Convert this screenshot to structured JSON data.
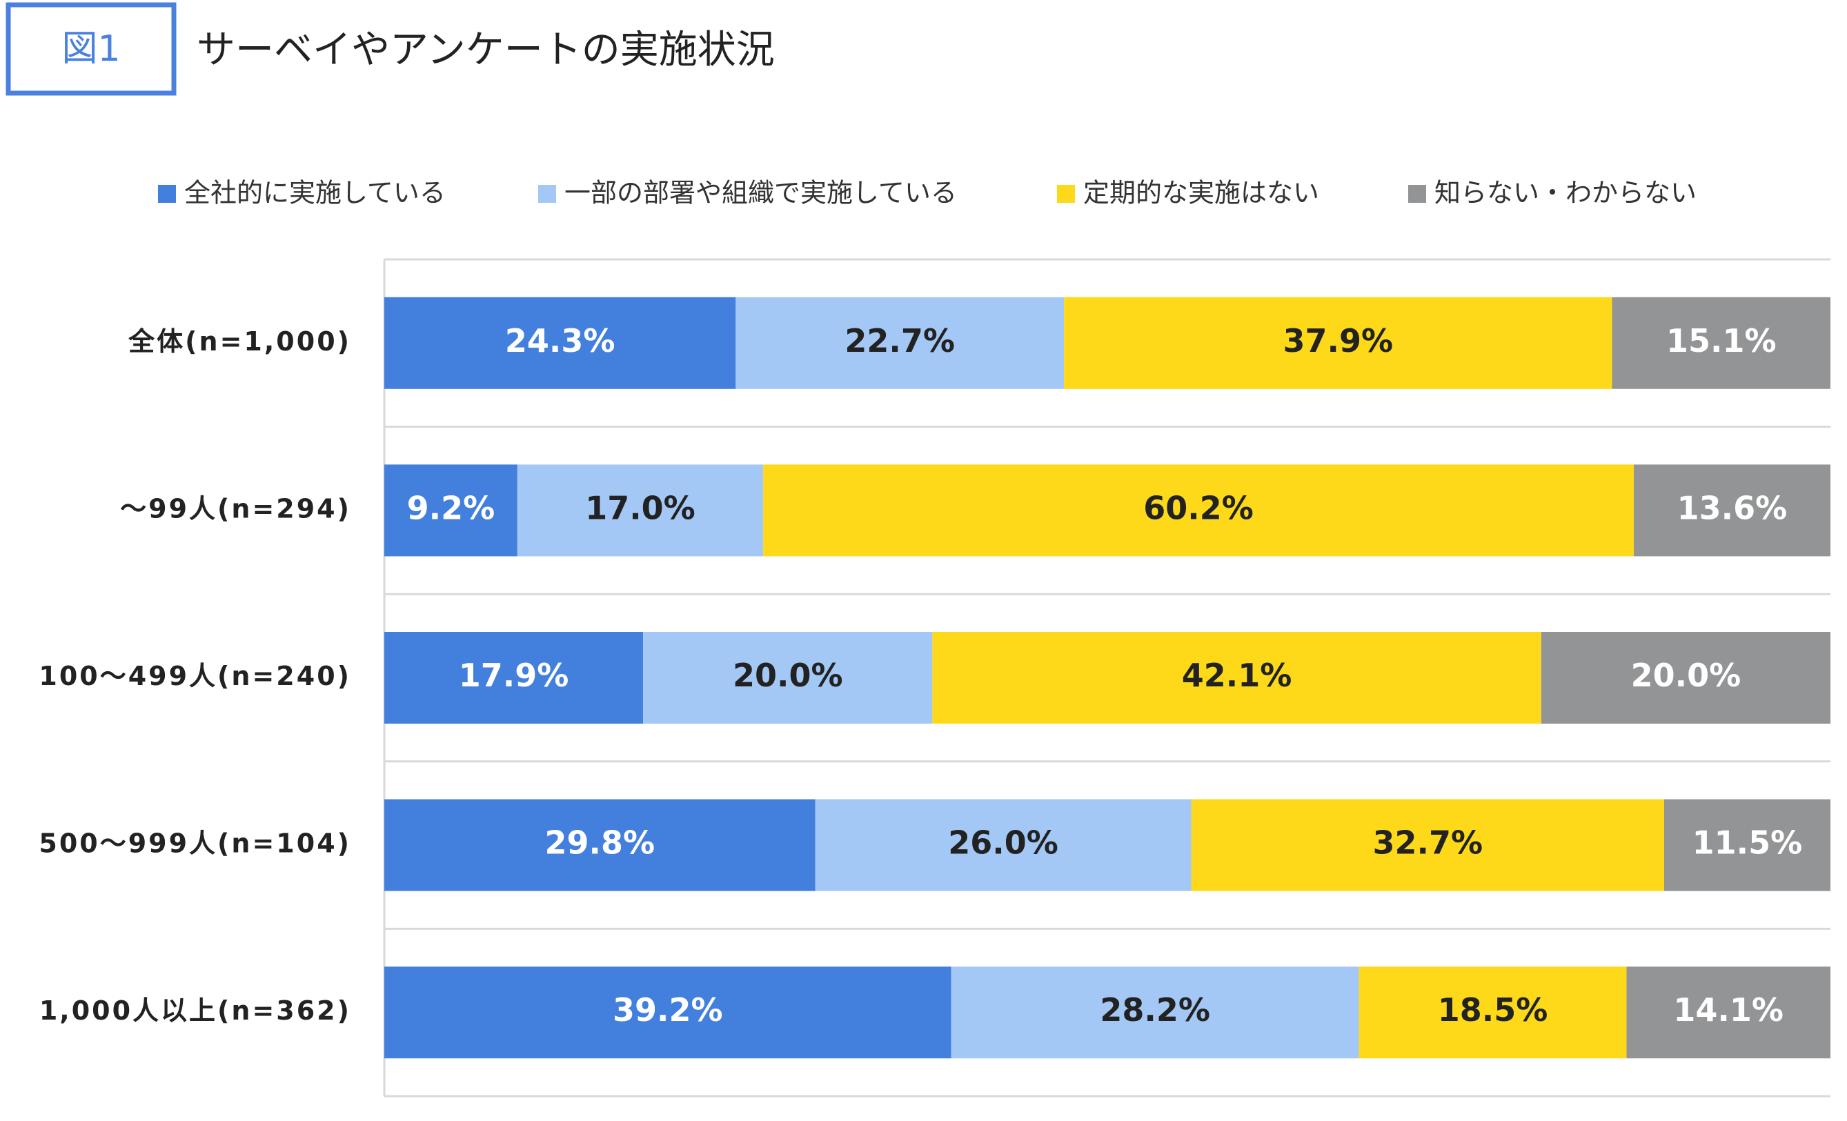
{
  "figure_label": "図1",
  "chart_data": {
    "type": "stacked-bar-horizontal",
    "title": "サーベイやアンケートの実施状況",
    "categories": [
      "全体(n=1,000)",
      "～99人(n=294)",
      "100～499人(n=240)",
      "500～999人(n=104)",
      "1,000人以上(n=362)"
    ],
    "xlim": [
      0,
      100
    ],
    "series": [
      {
        "name": "全社的に実施している",
        "color": "#437fdd",
        "label_color": "#ffffff",
        "values": [
          24.3,
          9.2,
          17.9,
          29.8,
          39.2
        ],
        "value_labels": [
          "24.3%",
          "9.2%",
          "17.9%",
          "29.8%",
          "39.2%"
        ]
      },
      {
        "name": "一部の部署や組織で実施している",
        "color": "#a4c8f5",
        "label_color": "#222222",
        "values": [
          22.7,
          17.0,
          20.0,
          26.0,
          28.2
        ],
        "value_labels": [
          "22.7%",
          "17.0%",
          "20.0%",
          "26.0%",
          "28.2%"
        ]
      },
      {
        "name": "定期的な実施はない",
        "color": "#fdd91a",
        "label_color": "#222222",
        "values": [
          37.9,
          60.2,
          42.1,
          32.7,
          18.5
        ],
        "value_labels": [
          "37.9%",
          "60.2%",
          "42.1%",
          "32.7%",
          "18.5%"
        ]
      },
      {
        "name": "知らない・わからない",
        "color": "#939496",
        "label_color": "#ffffff",
        "values": [
          15.1,
          13.6,
          20.0,
          11.5,
          14.1
        ],
        "value_labels": [
          "15.1%",
          "13.6%",
          "20.0%",
          "11.5%",
          "14.1%"
        ]
      }
    ]
  }
}
